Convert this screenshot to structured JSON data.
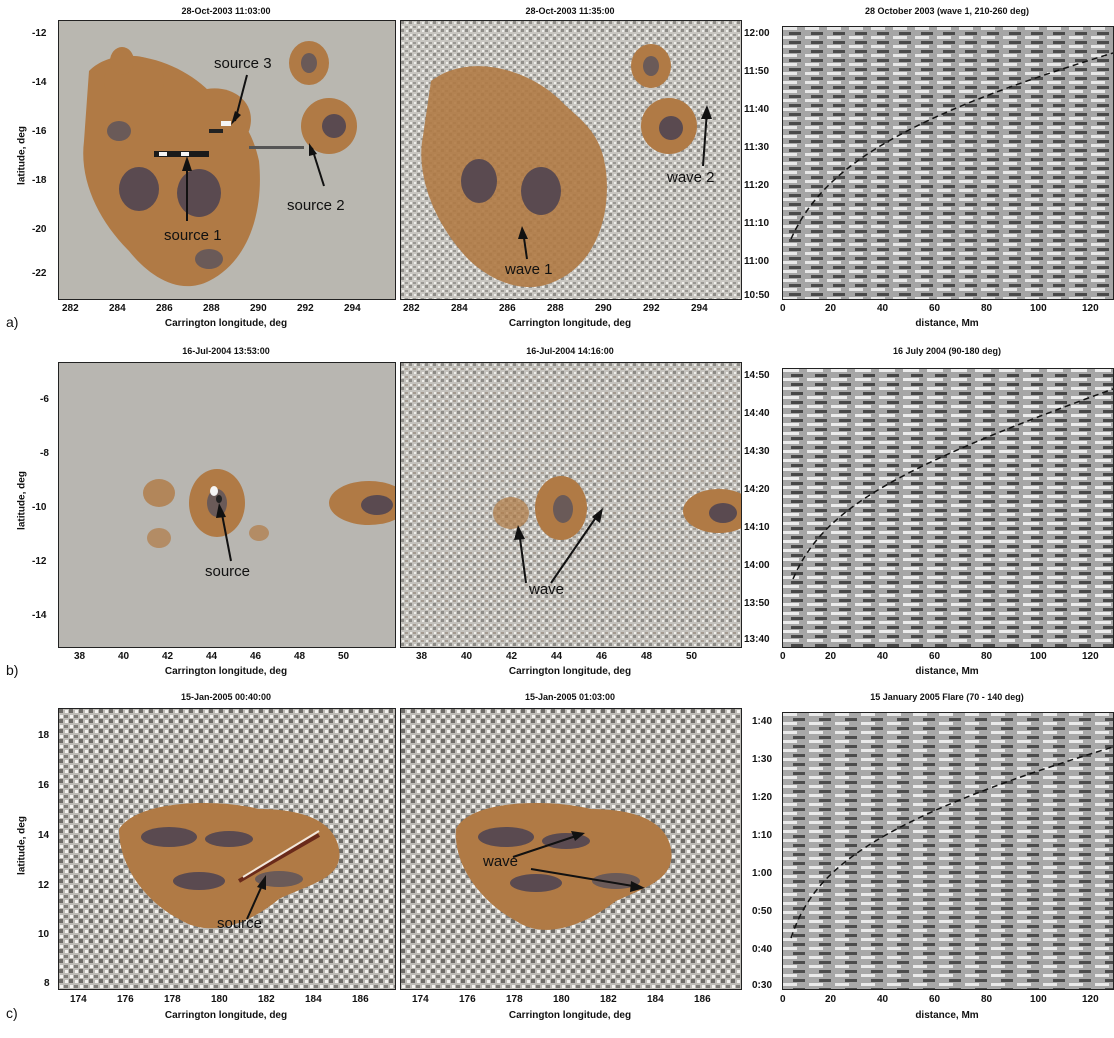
{
  "figure": {
    "rows": [
      {
        "label": "a)",
        "left_title": "28-Oct-2003 11:03:00",
        "mid_title": "28-Oct-2003 11:35:00",
        "right_title": "28 October 2003 (wave 1, 210-260 deg)",
        "ylabel": "latitude, deg",
        "xlabel": "Carrington longitude, deg",
        "lat_ticks": [
          "-12",
          "-14",
          "-16",
          "-18",
          "-20",
          "-22"
        ],
        "lon_ticks": [
          "282",
          "284",
          "286",
          "288",
          "290",
          "292",
          "294"
        ],
        "time_ticks": [
          "12:00",
          "11:50",
          "11:40",
          "11:30",
          "11:20",
          "11:10",
          "11:00",
          "10:50"
        ],
        "dist_ticks": [
          "0",
          "20",
          "40",
          "60",
          "80",
          "100",
          "120"
        ],
        "dist_label": "distance, Mm",
        "left_annotations": [
          "source 3",
          "source 2",
          "source 1"
        ],
        "mid_annotations": [
          "wave 2",
          "wave 1"
        ]
      },
      {
        "label": "b)",
        "left_title": "16-Jul-2004 13:53:00",
        "mid_title": "16-Jul-2004 14:16:00",
        "right_title": "16 July 2004 (90-180 deg)",
        "ylabel": "latitude, deg",
        "xlabel": "Carrington longitude, deg",
        "lat_ticks": [
          "-6",
          "-8",
          "-10",
          "-12",
          "-14"
        ],
        "lon_ticks": [
          "38",
          "40",
          "42",
          "44",
          "46",
          "48",
          "50"
        ],
        "time_ticks": [
          "14:50",
          "14:40",
          "14:30",
          "14:20",
          "14:10",
          "14:00",
          "13:50",
          "13:40"
        ],
        "dist_ticks": [
          "0",
          "20",
          "40",
          "60",
          "80",
          "100",
          "120"
        ],
        "dist_label": "distance, Mm",
        "left_annotations": [
          "source"
        ],
        "mid_annotations": [
          "wave"
        ]
      },
      {
        "label": "c)",
        "left_title": "15-Jan-2005 00:40:00",
        "mid_title": "15-Jan-2005 01:03:00",
        "right_title": "15 January 2005 Flare  (70 - 140 deg)",
        "ylabel": "latitude, deg",
        "xlabel": "Carrington longitude, deg",
        "lat_ticks": [
          "18",
          "16",
          "14",
          "12",
          "10",
          "8"
        ],
        "lon_ticks": [
          "174",
          "176",
          "178",
          "180",
          "182",
          "184",
          "186"
        ],
        "time_ticks": [
          "1:40",
          "1:30",
          "1:20",
          "1:10",
          "1:00",
          "0:50",
          "0:40",
          "0:30"
        ],
        "dist_ticks": [
          "0",
          "20",
          "40",
          "60",
          "80",
          "100",
          "120"
        ],
        "dist_label": "distance, Mm",
        "left_annotations": [
          "source"
        ],
        "mid_annotations": [
          "wave"
        ]
      }
    ]
  },
  "colors": {
    "quiet_sun": "#b9b7b0",
    "penumbra": "#b07a45",
    "umbra": "#5a4a50"
  }
}
